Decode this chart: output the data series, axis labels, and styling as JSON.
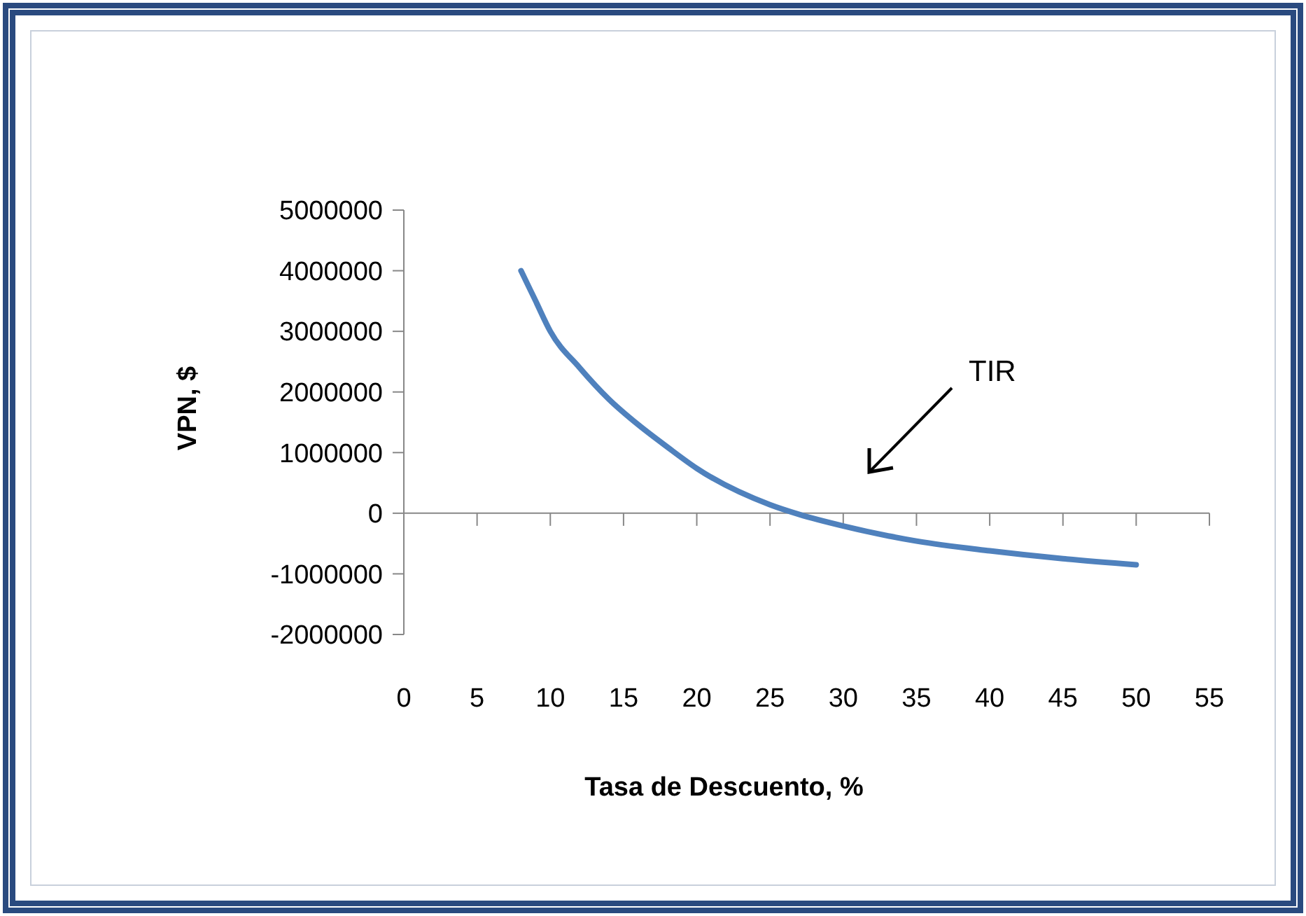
{
  "chart_data": {
    "type": "line",
    "xlabel": "Tasa de Descuento, %",
    "ylabel": "VPN, $",
    "series": [
      {
        "color": "#4f81bd",
        "x": [
          8,
          9,
          10,
          12,
          14,
          16,
          18,
          20,
          25,
          27,
          30,
          35,
          40,
          45,
          50
        ],
        "values": [
          4000000,
          3500000,
          3000000,
          2400000,
          1880000,
          1460000,
          1090000,
          740000,
          140000,
          -20000,
          -210000,
          -460000,
          -620000,
          -750000,
          -850000
        ]
      }
    ],
    "xlim": [
      0,
      55
    ],
    "xticks": [
      0,
      5,
      10,
      15,
      20,
      25,
      30,
      35,
      40,
      45,
      50,
      55
    ],
    "ylim": [
      -2000000,
      5000000
    ],
    "yticks": [
      -2000000,
      -1000000,
      0,
      1000000,
      2000000,
      3000000,
      4000000,
      5000000
    ],
    "annotations": [
      "TIR"
    ],
    "marker": "none",
    "line_style": "solid"
  }
}
